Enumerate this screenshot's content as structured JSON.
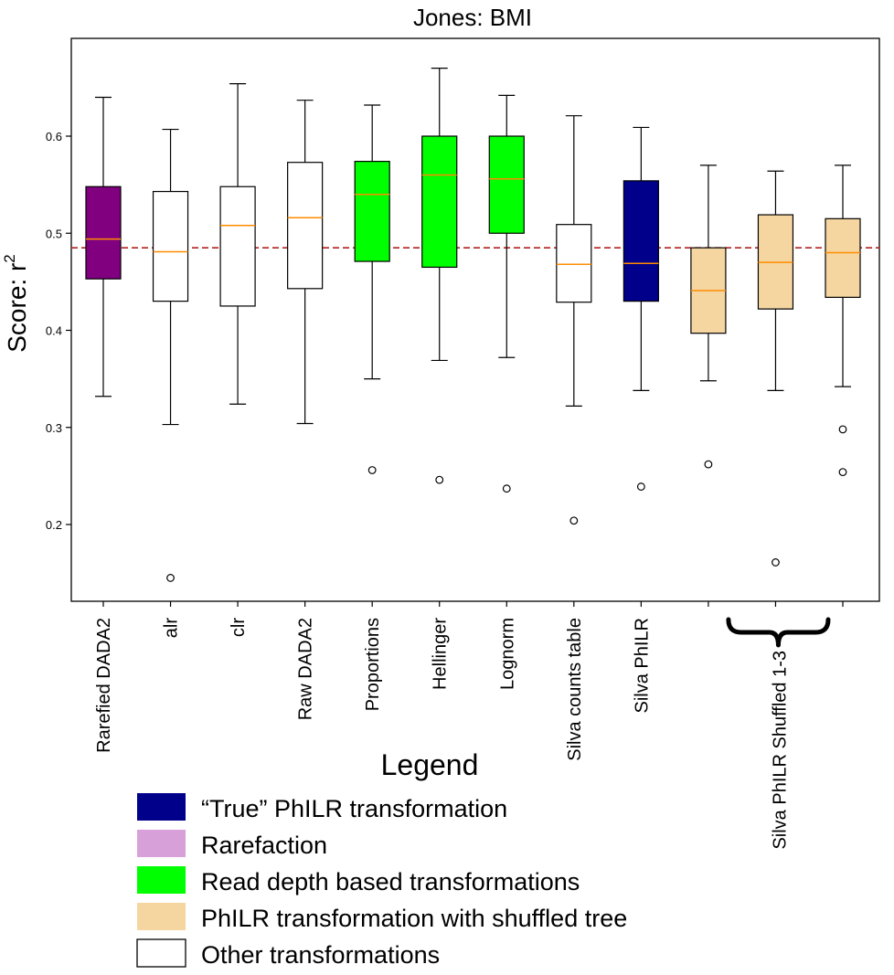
{
  "chart_data": {
    "type": "boxplot",
    "title": "Jones: BMI",
    "ylabel": "Score: r²",
    "ylabel_main": "Score: r",
    "ylabel_sup": "2",
    "ylim": [
      0.12,
      0.7
    ],
    "yticks": [
      "0.2",
      "0.3",
      "0.4",
      "0.5",
      "0.6"
    ],
    "ytick_values": [
      0.2,
      0.3,
      0.4,
      0.5,
      0.6
    ],
    "reference_line": 0.485,
    "categories": [
      "Rarefied DADA2",
      "alr",
      "clr",
      "Raw DADA2",
      "Proportions",
      "Hellinger",
      "Lognorm",
      "Silva counts table",
      "Silva PhILR",
      "",
      "",
      ""
    ],
    "group_label": "Silva PhILR Shuffled 1-3",
    "boxes": [
      {
        "whislo": 0.332,
        "q1": 0.453,
        "med": 0.494,
        "q3": 0.548,
        "whishi": 0.64,
        "fliers": [],
        "color": "#800080"
      },
      {
        "whislo": 0.303,
        "q1": 0.43,
        "med": 0.481,
        "q3": 0.543,
        "whishi": 0.607,
        "fliers": [
          0.145
        ],
        "color": "#ffffff"
      },
      {
        "whislo": 0.324,
        "q1": 0.425,
        "med": 0.508,
        "q3": 0.548,
        "whishi": 0.654,
        "fliers": [],
        "color": "#ffffff"
      },
      {
        "whislo": 0.304,
        "q1": 0.443,
        "med": 0.516,
        "q3": 0.573,
        "whishi": 0.637,
        "fliers": [],
        "color": "#ffffff"
      },
      {
        "whislo": 0.35,
        "q1": 0.471,
        "med": 0.54,
        "q3": 0.574,
        "whishi": 0.632,
        "fliers": [
          0.256
        ],
        "color": "#00ff00"
      },
      {
        "whislo": 0.369,
        "q1": 0.465,
        "med": 0.56,
        "q3": 0.6,
        "whishi": 0.67,
        "fliers": [
          0.246
        ],
        "color": "#00ff00"
      },
      {
        "whislo": 0.372,
        "q1": 0.5,
        "med": 0.556,
        "q3": 0.6,
        "whishi": 0.642,
        "fliers": [
          0.237
        ],
        "color": "#00ff00"
      },
      {
        "whislo": 0.322,
        "q1": 0.429,
        "med": 0.468,
        "q3": 0.509,
        "whishi": 0.621,
        "fliers": [
          0.204
        ],
        "color": "#ffffff"
      },
      {
        "whislo": 0.338,
        "q1": 0.43,
        "med": 0.469,
        "q3": 0.554,
        "whishi": 0.609,
        "fliers": [
          0.239
        ],
        "color": "#00008b"
      },
      {
        "whislo": 0.348,
        "q1": 0.397,
        "med": 0.441,
        "q3": 0.485,
        "whishi": 0.57,
        "fliers": [
          0.262
        ],
        "color": "#f5d6a0"
      },
      {
        "whislo": 0.338,
        "q1": 0.422,
        "med": 0.47,
        "q3": 0.519,
        "whishi": 0.564,
        "fliers": [
          0.161
        ],
        "color": "#f5d6a0"
      },
      {
        "whislo": 0.342,
        "q1": 0.434,
        "med": 0.48,
        "q3": 0.515,
        "whishi": 0.57,
        "fliers": [
          0.298,
          0.254
        ],
        "color": "#f5d6a0"
      }
    ],
    "legend": {
      "title": "Legend",
      "entries": [
        {
          "label": "“True” PhILR transformation",
          "color": "#00008b"
        },
        {
          "label": "Rarefaction",
          "color": "#d8a0d8"
        },
        {
          "label": "Read depth based transformations",
          "color": "#00ff00"
        },
        {
          "label": "PhILR transformation with shuffled tree",
          "color": "#f5d6a0"
        },
        {
          "label": "Other transformations",
          "color": "#ffffff"
        }
      ]
    },
    "colors": {
      "median": "#ff8c00",
      "reference_line": "#b22222",
      "axis": "#000000"
    }
  }
}
